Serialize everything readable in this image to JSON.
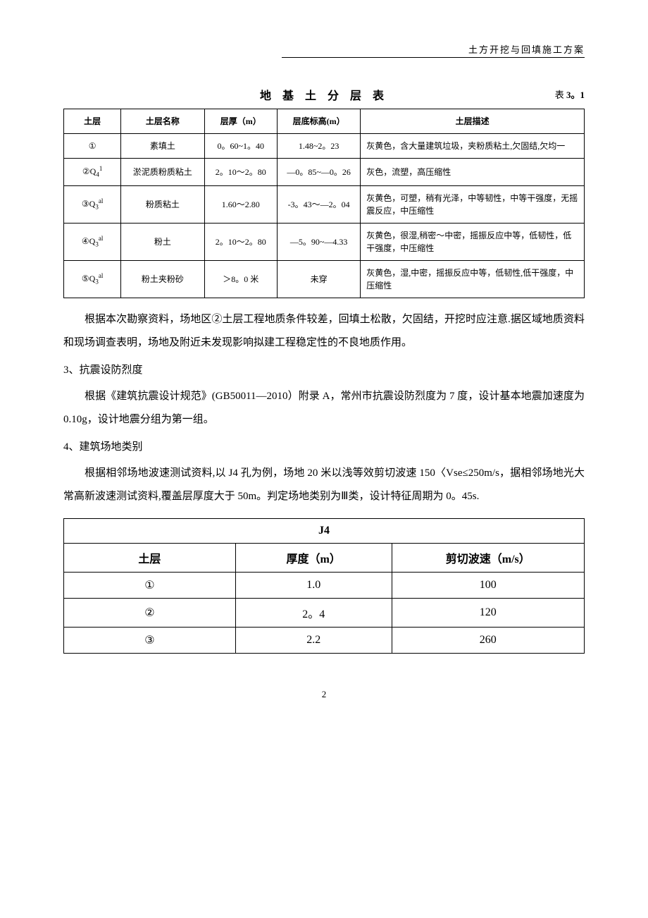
{
  "header": {
    "right_text": "土方开挖与回填施工方案"
  },
  "table1": {
    "title": "地 基 土 分 层 表",
    "table_number_prefix": "表 ",
    "table_number": "3。1",
    "columns": [
      "土层",
      "土层名称",
      "层厚（m）",
      "层底标高(m）",
      "土层描述"
    ],
    "rows": [
      {
        "c1": "①",
        "c2": "素填土",
        "c3": "0。60~1。40",
        "c4": "1.48~2。23",
        "c5": "灰黄色，含大量建筑垃圾，夹粉质粘土,欠固结,欠均一"
      },
      {
        "c1_html": "②Q<sub>4</sub><sup>1</sup>",
        "c2": "淤泥质粉质粘土",
        "c3": "2。10～2。80",
        "c4": "—0。85~—0。26",
        "c5": "灰色，流塑，高压缩性"
      },
      {
        "c1_html": "③Q<sub>3</sub><sup>al</sup>",
        "c2": "粉质粘土",
        "c3": "1.60～2.80",
        "c4": "-3。43～—2。04",
        "c5": "灰黄色，可塑，稍有光泽，中等韧性，中等干强度，无摇震反应，中压缩性"
      },
      {
        "c1_html": "④Q<sub>3</sub><sup>al</sup>",
        "c2": "粉土",
        "c3": "2。10～2。80",
        "c4": "—5。90~—4.33",
        "c5": "灰黄色，很湿,稍密～中密，摇振反应中等，低韧性，低干强度，中压缩性"
      },
      {
        "c1_html": "⑤Q<sub>3</sub><sup>al</sup>",
        "c2": "粉土夹粉砂",
        "c3": "＞8。0 米",
        "c4": "未穿",
        "c5": "灰黄色，湿,中密，摇振反应中等，低韧性,低干强度，中压缩性"
      }
    ]
  },
  "paragraphs": {
    "p1": "根据本次勘察资料，场地区②土层工程地质条件较差，回填土松散，欠固结，开挖时应注意.据区域地质资料和现场调查表明，场地及附近未发现影响拟建工程稳定性的不良地质作用。",
    "s3_title": "3、抗震设防烈度",
    "p2": "根据《建筑抗震设计规范》(GB50011—2010）附录 A，常州市抗震设防烈度为 7 度，设计基本地震加速度为 0.10g，设计地震分组为第一组。",
    "s4_title": "4、建筑场地类别",
    "p3": "根据相邻场地波速测试资料,以 J4 孔为例，场地 20 米以浅等效剪切波速 150〈Vse≤250m/s，据相邻场地光大常高新波速测试资料,覆盖层厚度大于 50m。判定场地类别为Ⅲ类，设计特征周期为 0。45s."
  },
  "table2": {
    "title": "J4",
    "columns": [
      "土层",
      "厚度（m）",
      "剪切波速（m/s）"
    ],
    "rows": [
      {
        "c1": "①",
        "c2": "1.0",
        "c3": "100"
      },
      {
        "c1": "②",
        "c2": "2。4",
        "c3": "120"
      },
      {
        "c1": "③",
        "c2": "2.2",
        "c3": "260"
      }
    ]
  },
  "page_number": "2",
  "col_widths": {
    "t1": [
      "11%",
      "16%",
      "14%",
      "16%",
      "43%"
    ],
    "t2": [
      "33%",
      "30%",
      "37%"
    ]
  }
}
